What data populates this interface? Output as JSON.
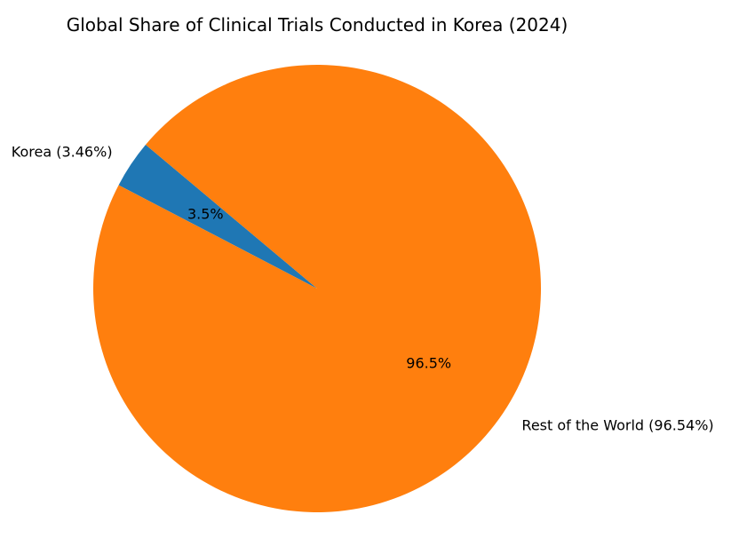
{
  "chart_data": {
    "type": "pie",
    "title": "Global Share of Clinical Trials Conducted in Korea (2024)",
    "categories": [
      "Korea",
      "Rest of the World"
    ],
    "values": [
      3.46,
      96.54
    ],
    "labels": [
      "Korea (3.46%)",
      "Rest of the World (96.54%)"
    ],
    "autopct_labels": [
      "3.5%",
      "96.5%"
    ],
    "colors": [
      "#1f77b4",
      "#ff7f0e"
    ],
    "start_angle": 140,
    "legend": "none"
  }
}
